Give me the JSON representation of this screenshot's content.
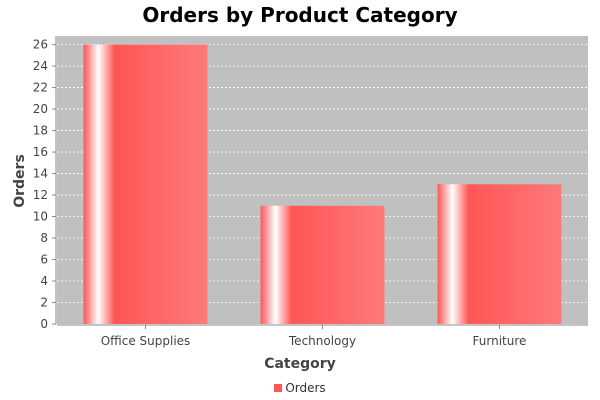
{
  "chart_data": {
    "type": "bar",
    "title": "Orders by Product Category",
    "xlabel": "Category",
    "ylabel": "Orders",
    "categories": [
      "Office Supplies",
      "Technology",
      "Furniture"
    ],
    "series": [
      {
        "name": "Orders",
        "values": [
          26,
          11,
          13
        ]
      }
    ],
    "ylim": [
      0,
      26.8
    ],
    "yticks": [
      0,
      2,
      4,
      6,
      8,
      10,
      12,
      14,
      16,
      18,
      20,
      22,
      24,
      26
    ],
    "grid": true,
    "legend_position": "bottom",
    "colors": {
      "bar": "#ff5555",
      "plot_background": "#c0c0c0",
      "grid": "#ffffff"
    }
  }
}
